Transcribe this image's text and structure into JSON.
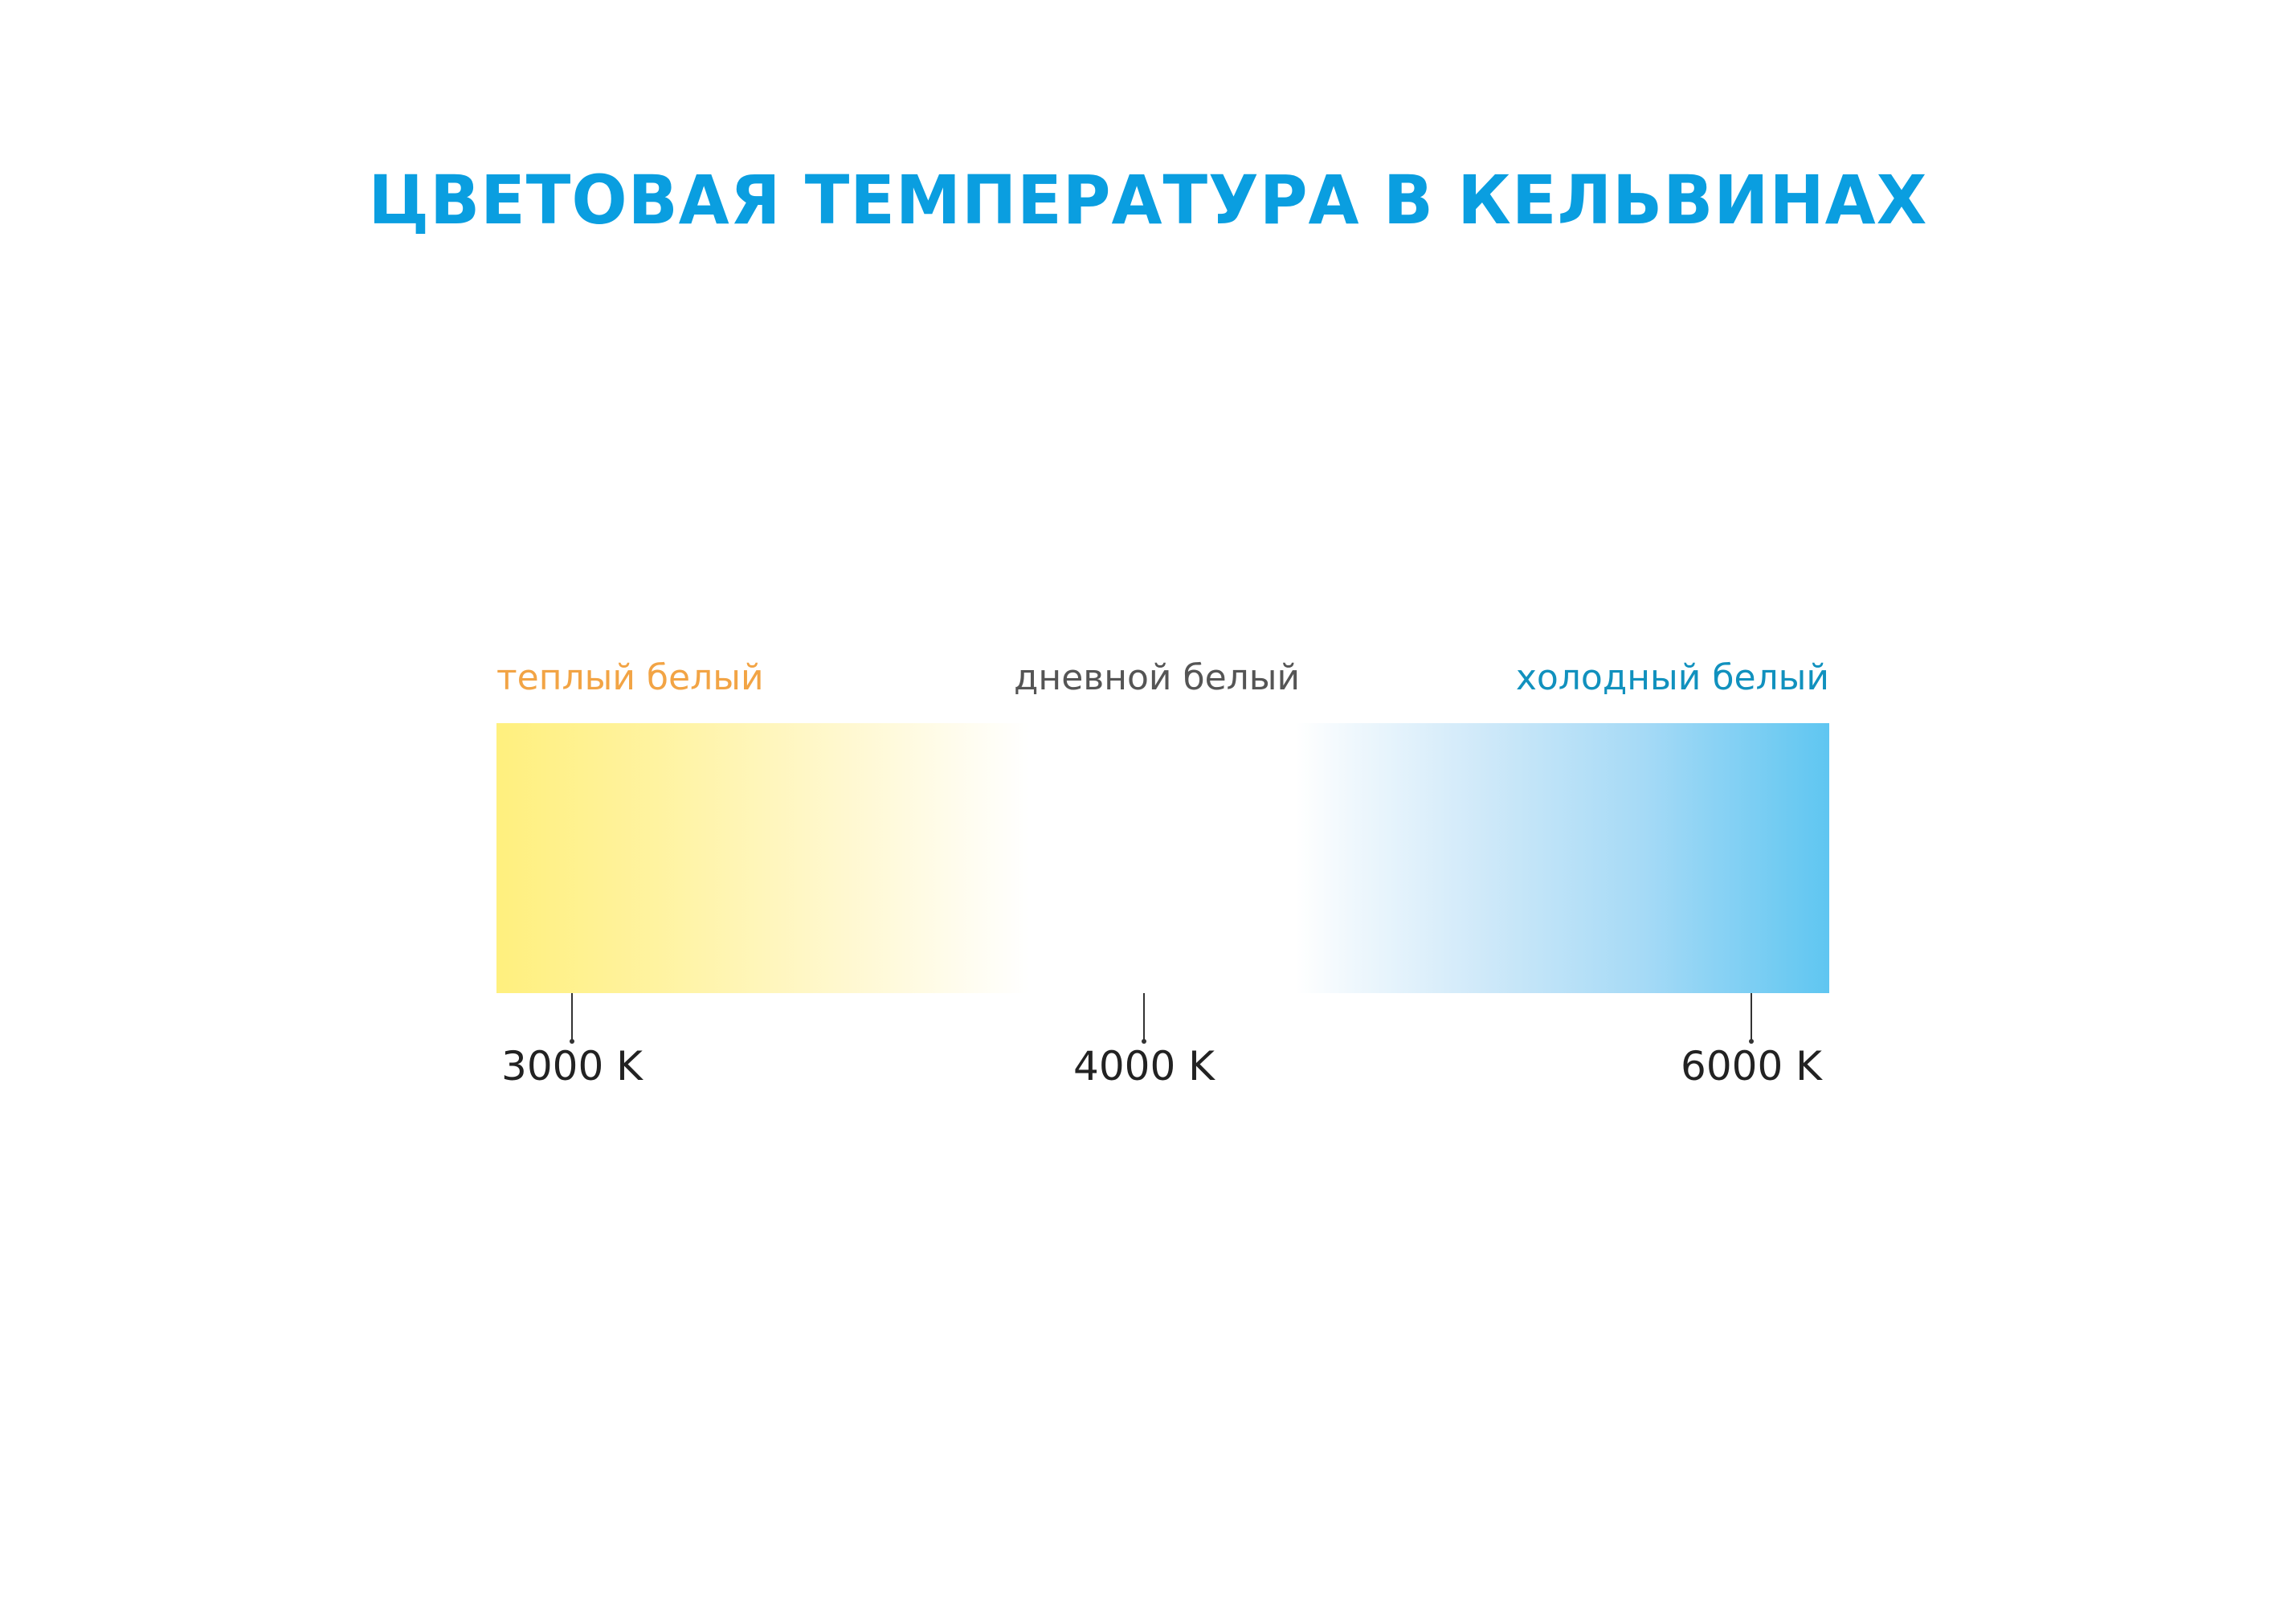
{
  "title": "ЦВЕТОВАЯ ТЕМПЕРАТУРА В КЕЛЬВИНАХ",
  "labels": {
    "warm": "теплый белый",
    "day": "дневной белый",
    "cold": "холодный белый"
  },
  "scale": {
    "ticks": [
      "3000 K",
      "4000 K",
      "6000 K"
    ]
  },
  "colors": {
    "title": "#0a9ee0",
    "warm": "#fff07e",
    "cold": "#5fc6f1",
    "warm_label": "#f2a445",
    "cold_label": "#1191be"
  }
}
